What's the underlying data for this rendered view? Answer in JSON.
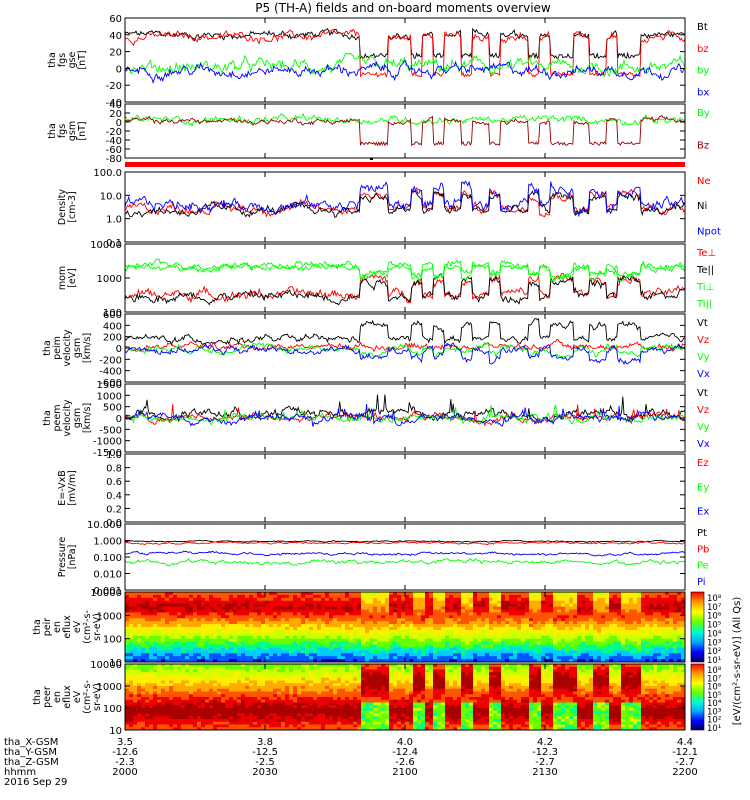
{
  "title": "P5 (TH-A) fields and on-board moments overview",
  "colors": {
    "black": "#000000",
    "red": "#ff0000",
    "green": "#00ff00",
    "blue": "#0000ff",
    "darkred": "#990000"
  },
  "chart_data": [
    {
      "type": "line",
      "ylabel": [
        "tha",
        "fgs",
        "gse",
        "[nT]"
      ],
      "yticks": [
        "60",
        "40",
        "20",
        "0",
        "-20",
        "-40"
      ],
      "ylim": [
        -40,
        60
      ],
      "series": [
        {
          "name": "Bt",
          "color": "black",
          "base": 40,
          "amp": 6,
          "dip": -25,
          "dips": true
        },
        {
          "name": "bz",
          "color": "red",
          "base": 38,
          "amp": 6,
          "dip": -45,
          "dips": true
        },
        {
          "name": "by",
          "color": "green",
          "base": 2,
          "amp": 10
        },
        {
          "name": "bx",
          "color": "blue",
          "base": -2,
          "amp": 8
        }
      ]
    },
    {
      "type": "line",
      "ylabel": [
        "tha",
        "fgs",
        "gsm",
        "[nT]"
      ],
      "yticks": [
        "40",
        "20",
        "0",
        "-20",
        "-40",
        "-60",
        "-80"
      ],
      "ylim": [
        -80,
        40
      ],
      "series": [
        {
          "name": "By",
          "color": "green",
          "base": 5,
          "amp": 10
        },
        {
          "name": "Bz",
          "color": "darkred",
          "base": 2,
          "amp": 8,
          "dip": -50,
          "dips": true
        }
      ]
    },
    {
      "type": "line",
      "ylabel": [
        "Density",
        "[cm-3]"
      ],
      "yticks": [
        "100.0",
        "10.0",
        "1.0",
        "0.1"
      ],
      "log": true,
      "ylim": [
        0.1,
        100
      ],
      "series": [
        {
          "name": "Ne",
          "color": "red",
          "base": 0.45,
          "amp": 0.25,
          "jump": 0.6
        },
        {
          "name": "Ni",
          "color": "black",
          "base": 0.35,
          "amp": 0.25,
          "jump": 0.6
        },
        {
          "name": "Npot",
          "color": "blue",
          "base": 0.6,
          "amp": 0.3,
          "jump": 0.7
        }
      ]
    },
    {
      "type": "line",
      "ylabel": [
        "mom",
        "[eV]"
      ],
      "yticks": [
        "10000",
        "1000",
        "100"
      ],
      "log": true,
      "ylim": [
        50,
        10000
      ],
      "series": [
        {
          "name": "Te⊥",
          "color": "red",
          "base": 2.3,
          "amp": 0.2,
          "jump": 0.5
        },
        {
          "name": "Te||",
          "color": "black",
          "base": 2.25,
          "amp": 0.2,
          "jump": 0.5
        },
        {
          "name": "Ti⊥",
          "color": "green",
          "base": 3.3,
          "amp": 0.15,
          "jump": -0.3
        },
        {
          "name": "Ti||",
          "color": "green",
          "base": 3.2,
          "amp": 0.15,
          "jump": -0.3
        }
      ]
    },
    {
      "type": "line",
      "ylabel": [
        "tha",
        "peim",
        "velocity",
        "gsm",
        "[km/s]"
      ],
      "yticks": [
        "600",
        "400",
        "200",
        "0",
        "-200",
        "-400",
        "-600"
      ],
      "ylim": [
        -600,
        600
      ],
      "series": [
        {
          "name": "Vt",
          "color": "black",
          "base": 150,
          "amp": 80,
          "jump": 250
        },
        {
          "name": "Vz",
          "color": "red",
          "base": 30,
          "amp": 70
        },
        {
          "name": "Vy",
          "color": "green",
          "base": 0,
          "amp": 80,
          "jump": -100
        },
        {
          "name": "Vx",
          "color": "blue",
          "base": -30,
          "amp": 80,
          "jump": -150
        }
      ]
    },
    {
      "type": "line",
      "ylabel": [
        "tha",
        "peem",
        "velocity",
        "gsm",
        "[km/s]"
      ],
      "yticks": [
        "1500",
        "1000",
        "500",
        "0",
        "-500",
        "-1000",
        "-1500"
      ],
      "ylim": [
        -1500,
        1500
      ],
      "series": [
        {
          "name": "Vt",
          "color": "black",
          "base": 200,
          "amp": 250,
          "spiky": true
        },
        {
          "name": "Vz",
          "color": "red",
          "base": 0,
          "amp": 200,
          "spiky": true
        },
        {
          "name": "Vy",
          "color": "green",
          "base": 0,
          "amp": 200,
          "spiky": true
        },
        {
          "name": "Vx",
          "color": "blue",
          "base": 0,
          "amp": 220,
          "spiky": true
        }
      ]
    },
    {
      "type": "line",
      "ylabel": [
        "E=-VxB",
        "[mV/m]"
      ],
      "yticks": [
        "1.0",
        "0.8",
        "0.6",
        "0.4",
        "0.2",
        "0.0"
      ],
      "ylim": [
        0,
        1
      ],
      "empty": true,
      "series": [
        {
          "name": "Ez",
          "color": "red"
        },
        {
          "name": "Ey",
          "color": "green"
        },
        {
          "name": "Ex",
          "color": "blue"
        }
      ]
    },
    {
      "type": "line",
      "ylabel": [
        "Pressure",
        "[nPa]"
      ],
      "yticks": [
        "10.000",
        "1.000",
        "0.100",
        "0.010",
        "0.001"
      ],
      "log": true,
      "ylim": [
        0.001,
        10
      ],
      "series": [
        {
          "name": "Pt",
          "color": "black",
          "base": -0.05,
          "amp": 0.05
        },
        {
          "name": "Pb",
          "color": "red",
          "base": -0.15,
          "amp": 0.07
        },
        {
          "name": "Pe",
          "color": "green",
          "base": -1.3,
          "amp": 0.15
        },
        {
          "name": "Pi",
          "color": "blue",
          "base": -0.8,
          "amp": 0.1
        }
      ]
    },
    {
      "type": "heatmap",
      "ylabel": [
        "tha",
        "peir",
        "en",
        "eflux",
        "eV",
        "(cm²-s-",
        "sr-eV)"
      ],
      "yticks": [
        "10000",
        "1000",
        "100",
        "10"
      ],
      "log": true
    },
    {
      "type": "heatmap",
      "ylabel": [
        "tha",
        "peer",
        "en",
        "eflux",
        "eV",
        "(cm²-s-",
        "sr-eV)"
      ],
      "yticks": [
        "10000",
        "1000",
        "100",
        "10"
      ],
      "log": true
    }
  ],
  "colorbar": {
    "label": "[eV/(cm²-s-sr-eV)] (All Qs)",
    "ticks": [
      "10⁸",
      "10⁷",
      "10⁶",
      "10⁵",
      "10⁴",
      "10³",
      "10²",
      "10¹"
    ]
  },
  "xaxis": {
    "rows": [
      {
        "label": "tha_X-GSM",
        "values": [
          "3.5",
          "3.8",
          "4.0",
          "4.2",
          "4.4"
        ]
      },
      {
        "label": "tha_Y-GSM",
        "values": [
          "-12.6",
          "-12.5",
          "-12.4",
          "-12.3",
          "-12.1"
        ]
      },
      {
        "label": "tha_Z-GSM",
        "values": [
          "-2.3",
          "-2.5",
          "-2.6",
          "-2.7",
          "-2.7"
        ]
      },
      {
        "label": "hhmm",
        "values": [
          "2000",
          "2030",
          "2100",
          "2130",
          "2200"
        ]
      }
    ],
    "date": "2016 Sep 29"
  }
}
